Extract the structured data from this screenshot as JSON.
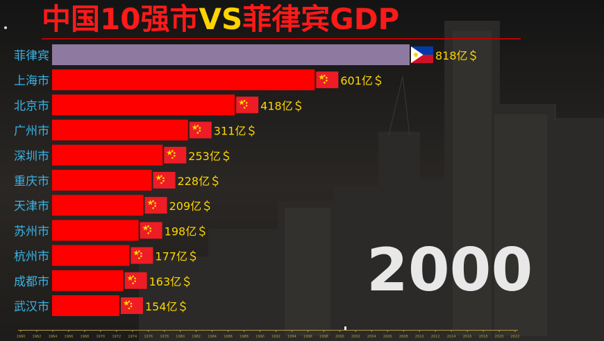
{
  "title": {
    "part1": "中国10强市",
    "part2": "VS",
    "part3": "菲律宾GDP"
  },
  "year": "2000",
  "colors": {
    "china_bar": "#ff0000",
    "philippines_bar": "#8e7aa0",
    "label_text": "#ffd700",
    "category_text": "#3ab4e6",
    "title_red": "#ff1a1a",
    "title_yellow": "#ffd400"
  },
  "chart_data": {
    "type": "bar",
    "orientation": "horizontal",
    "value_suffix": "亿＄",
    "categories": [
      "菲律宾",
      "上海市",
      "北京市",
      "广州市",
      "深圳市",
      "重庆市",
      "天津市",
      "苏州市",
      "杭州市",
      "成都市",
      "武汉市"
    ],
    "values": [
      818,
      601,
      418,
      311,
      253,
      228,
      209,
      198,
      177,
      163,
      154
    ],
    "flags": [
      "philippines-flag",
      "china-flag",
      "china-flag",
      "china-flag",
      "china-flag",
      "china-flag",
      "china-flag",
      "china-flag",
      "china-flag",
      "china-flag",
      "china-flag"
    ],
    "xlim": [
      0,
      818
    ],
    "timeline_ticks": [
      "1960",
      "1962",
      "1964",
      "1966",
      "1968",
      "1970",
      "1972",
      "1974",
      "1976",
      "1978",
      "1980",
      "1982",
      "1984",
      "1986",
      "1988",
      "1990",
      "1992",
      "1994",
      "1996",
      "1998",
      "2000",
      "2002",
      "2004",
      "2006",
      "2008",
      "2010",
      "2012",
      "2014",
      "2016",
      "2018",
      "2020",
      "2022"
    ],
    "current_year": "2000"
  }
}
